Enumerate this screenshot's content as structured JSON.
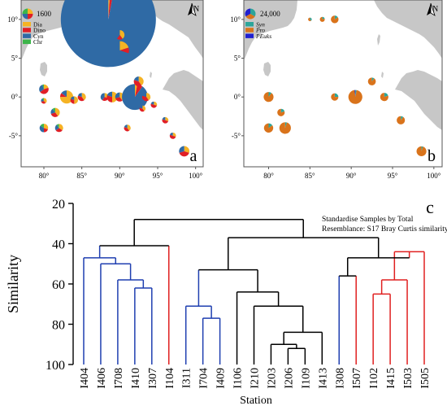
{
  "figure": {
    "colors": {
      "sea": "#ffffff",
      "land": "#c7c7c7",
      "frame": "#555555",
      "dia": "#f5b324",
      "dino": "#e01f26",
      "cyn": "#2f6aa5",
      "chr": "#3cb54a",
      "syn": "#2ca59a",
      "pro": "#d9731b",
      "peuks": "#1f1fd0",
      "blue_cluster": "#1f3fb0",
      "red_cluster": "#e02020",
      "black": "#000000"
    }
  },
  "panels": [
    {
      "id": "a",
      "panel_label": "a",
      "north_label": "N",
      "lat_ticks": [
        "10°",
        "5°",
        "0°",
        "-5°"
      ],
      "lon_ticks": [
        "80°",
        "85°",
        "90°",
        "95°",
        "100°"
      ],
      "legend": {
        "scale_value": "1600",
        "entries": [
          {
            "label": "Dia",
            "color": "#f5b324"
          },
          {
            "label": "Dino",
            "color": "#e01f26"
          },
          {
            "label": "Cyn",
            "color": "#2f6aa5"
          },
          {
            "label": "Chr",
            "color": "#3cb54a"
          }
        ]
      }
    },
    {
      "id": "b",
      "panel_label": "b",
      "north_label": "N",
      "lat_ticks": [
        "10°",
        "5°",
        "0°",
        "-5°"
      ],
      "lon_ticks": [
        "80°",
        "85°",
        "90°",
        "95°",
        "100°"
      ],
      "legend": {
        "scale_value": "24,000",
        "entries": [
          {
            "label": "Syn",
            "color": "#2ca59a"
          },
          {
            "label": "Pro",
            "color": "#d9731b"
          },
          {
            "label": "PEuks",
            "color": "#1f1fd0"
          }
        ]
      }
    }
  ],
  "chart_data": [
    {
      "type": "scatter",
      "panel": "a",
      "series_order": [
        "Dia",
        "Dino",
        "Cyn",
        "Chr"
      ],
      "xlim": [
        77,
        101
      ],
      "ylim": [
        -9,
        12.5
      ],
      "stations": [
        {
          "lon": 80,
          "lat": 1,
          "total": 250,
          "parts": [
            0.2,
            0.45,
            0.3,
            0.05
          ]
        },
        {
          "lon": 80,
          "lat": -0.5,
          "total": 90,
          "parts": [
            0.4,
            0.3,
            0.2,
            0.1
          ]
        },
        {
          "lon": 81.5,
          "lat": -2,
          "total": 230,
          "parts": [
            0.4,
            0.3,
            0.2,
            0.1
          ]
        },
        {
          "lon": 80,
          "lat": -4,
          "total": 200,
          "parts": [
            0.3,
            0.2,
            0.35,
            0.15
          ]
        },
        {
          "lon": 82,
          "lat": -4,
          "total": 180,
          "parts": [
            0.35,
            0.3,
            0.25,
            0.1
          ]
        },
        {
          "lon": 83,
          "lat": 0,
          "total": 480,
          "parts": [
            0.75,
            0.1,
            0.15,
            0.0
          ]
        },
        {
          "lon": 84,
          "lat": -0.4,
          "total": 160,
          "parts": [
            0.5,
            0.3,
            0.2,
            0.0
          ]
        },
        {
          "lon": 85,
          "lat": 0,
          "total": 180,
          "parts": [
            0.4,
            0.4,
            0.2,
            0.0
          ]
        },
        {
          "lon": 85,
          "lat": 10,
          "total": 2700,
          "parts": [
            0.05,
            0.15,
            0.8,
            0.0
          ]
        },
        {
          "lon": 88,
          "lat": 0,
          "total": 170,
          "parts": [
            0.3,
            0.3,
            0.4,
            0.0
          ]
        },
        {
          "lon": 89,
          "lat": 0,
          "total": 320,
          "parts": [
            0.5,
            0.3,
            0.2,
            0.0
          ]
        },
        {
          "lon": 88.5,
          "lat": 10,
          "total": 25000,
          "parts": [
            0.01,
            0.02,
            0.97,
            0.0
          ]
        },
        {
          "lon": 90,
          "lat": 8,
          "total": 250,
          "parts": [
            0.4,
            0.2,
            0.4,
            0.0
          ]
        },
        {
          "lon": 90,
          "lat": 6,
          "total": 950,
          "parts": [
            0.2,
            0.1,
            0.7,
            0.0
          ]
        },
        {
          "lon": 90,
          "lat": 0,
          "total": 230,
          "parts": [
            0.4,
            0.3,
            0.3,
            0.0
          ]
        },
        {
          "lon": 92,
          "lat": 0,
          "total": 1850,
          "parts": [
            0.03,
            0.07,
            0.9,
            0.0
          ]
        },
        {
          "lon": 92.5,
          "lat": 2,
          "total": 270,
          "parts": [
            0.4,
            0.4,
            0.2,
            0.0
          ]
        },
        {
          "lon": 93.5,
          "lat": 0,
          "total": 190,
          "parts": [
            0.4,
            0.4,
            0.2,
            0.0
          ]
        },
        {
          "lon": 91,
          "lat": -4,
          "total": 120,
          "parts": [
            0.4,
            0.4,
            0.2,
            0.0
          ]
        },
        {
          "lon": 93,
          "lat": -1.5,
          "total": 100,
          "parts": [
            0.4,
            0.4,
            0.2,
            0.0
          ]
        },
        {
          "lon": 94.5,
          "lat": -1,
          "total": 110,
          "parts": [
            0.3,
            0.5,
            0.2,
            0.0
          ]
        },
        {
          "lon": 96,
          "lat": -3,
          "total": 110,
          "parts": [
            0.3,
            0.5,
            0.2,
            0.0
          ]
        },
        {
          "lon": 97,
          "lat": -5,
          "total": 110,
          "parts": [
            0.3,
            0.5,
            0.2,
            0.0
          ]
        },
        {
          "lon": 98.5,
          "lat": -7,
          "total": 300,
          "parts": [
            0.3,
            0.4,
            0.3,
            0.0
          ]
        }
      ]
    },
    {
      "type": "scatter",
      "panel": "b",
      "series_order": [
        "Syn",
        "Pro",
        "PEuks"
      ],
      "xlim": [
        77,
        101
      ],
      "ylim": [
        -9,
        12.5
      ],
      "stations": [
        {
          "lon": 85,
          "lat": 10,
          "total": 1500,
          "parts": [
            0.4,
            0.6,
            0.0
          ]
        },
        {
          "lon": 86.5,
          "lat": 10,
          "total": 4000,
          "parts": [
            0.2,
            0.8,
            0.0
          ]
        },
        {
          "lon": 88,
          "lat": 10,
          "total": 9500,
          "parts": [
            0.15,
            0.85,
            0.0
          ]
        },
        {
          "lon": 80,
          "lat": 0,
          "total": 16000,
          "parts": [
            0.1,
            0.9,
            0.0
          ]
        },
        {
          "lon": 80,
          "lat": -4,
          "total": 14000,
          "parts": [
            0.15,
            0.85,
            0.0
          ]
        },
        {
          "lon": 82,
          "lat": -4,
          "total": 22000,
          "parts": [
            0.05,
            0.95,
            0.0
          ]
        },
        {
          "lon": 81.5,
          "lat": -2,
          "total": 9000,
          "parts": [
            0.2,
            0.8,
            0.0
          ]
        },
        {
          "lon": 88,
          "lat": 0,
          "total": 9000,
          "parts": [
            0.25,
            0.75,
            0.0
          ]
        },
        {
          "lon": 90.5,
          "lat": 0,
          "total": 32000,
          "parts": [
            0.03,
            0.95,
            0.02
          ]
        },
        {
          "lon": 92.5,
          "lat": 2,
          "total": 10000,
          "parts": [
            0.1,
            0.9,
            0.0
          ]
        },
        {
          "lon": 94,
          "lat": 0,
          "total": 11000,
          "parts": [
            0.2,
            0.8,
            0.0
          ]
        },
        {
          "lon": 96,
          "lat": -3,
          "total": 11000,
          "parts": [
            0.1,
            0.9,
            0.0
          ]
        },
        {
          "lon": 98.5,
          "lat": -7,
          "total": 16000,
          "parts": [
            0.05,
            0.95,
            0.0
          ]
        }
      ]
    },
    {
      "type": "dendrogram",
      "panel": "c",
      "panel_label": "c",
      "ylabel": "Similarity",
      "xlabel": "Station",
      "ylim": [
        100,
        20
      ],
      "yticks": [
        20,
        40,
        60,
        80,
        100
      ],
      "annotation": [
        "Standardise Samples by Total",
        "Resemblance: S17 Bray Curtis similarity"
      ],
      "leaves": [
        "I404",
        "I406",
        "I708",
        "I410",
        "I307",
        "I104",
        "I311",
        "I704",
        "I409",
        "I106",
        "I210",
        "I203",
        "I206",
        "I109",
        "I413",
        "I308",
        "I507",
        "I102",
        "I415",
        "I503",
        "I505"
      ],
      "merges": [
        {
          "id": "n1",
          "left": "I410",
          "right": "I307",
          "sim": 62,
          "color": "blue"
        },
        {
          "id": "n2",
          "left": "I708",
          "right": "n1",
          "sim": 58,
          "color": "blue"
        },
        {
          "id": "n3",
          "left": "I406",
          "right": "n2",
          "sim": 50,
          "color": "blue"
        },
        {
          "id": "n4",
          "left": "I404",
          "right": "n3",
          "sim": 47,
          "color": "blue"
        },
        {
          "id": "n5",
          "left": "n4",
          "right": "I104",
          "sim": 41,
          "color": "mixed"
        },
        {
          "id": "n6",
          "left": "I704",
          "right": "I409",
          "sim": 77,
          "color": "blue"
        },
        {
          "id": "n7",
          "left": "I311",
          "right": "n6",
          "sim": 71,
          "color": "blue"
        },
        {
          "id": "n8",
          "left": "I206",
          "right": "I109",
          "sim": 92,
          "color": "black"
        },
        {
          "id": "n9",
          "left": "I203",
          "right": "n8",
          "sim": 90,
          "color": "black"
        },
        {
          "id": "n10",
          "left": "n9",
          "right": "I413",
          "sim": 84,
          "color": "black"
        },
        {
          "id": "n11",
          "left": "I210",
          "right": "n10",
          "sim": 71,
          "color": "black"
        },
        {
          "id": "n12",
          "left": "I106",
          "right": "n11",
          "sim": 64,
          "color": "black"
        },
        {
          "id": "n13",
          "left": "n7",
          "right": "n12",
          "sim": 53,
          "color": "black"
        },
        {
          "id": "n14",
          "left": "I308",
          "right": "I507",
          "sim": 56,
          "color": "mixed"
        },
        {
          "id": "n15",
          "left": "I102",
          "right": "I415",
          "sim": 65,
          "color": "red"
        },
        {
          "id": "n16",
          "left": "n15",
          "right": "I503",
          "sim": 58,
          "color": "red"
        },
        {
          "id": "n17",
          "left": "n16",
          "right": "I505",
          "sim": 44,
          "color": "red"
        },
        {
          "id": "n18",
          "left": "n14",
          "right": "n17",
          "sim": 47,
          "color": "black"
        },
        {
          "id": "n19",
          "left": "n13",
          "right": "n18",
          "sim": 37,
          "color": "black"
        },
        {
          "id": "n20",
          "left": "n5",
          "right": "n19",
          "sim": 28,
          "color": "black"
        }
      ],
      "leaf_colors": {
        "I404": "blue",
        "I406": "blue",
        "I708": "blue",
        "I410": "blue",
        "I307": "blue",
        "I104": "red",
        "I311": "blue",
        "I704": "blue",
        "I409": "blue",
        "I106": "black",
        "I210": "black",
        "I203": "black",
        "I206": "black",
        "I109": "black",
        "I413": "black",
        "I308": "blue",
        "I507": "red",
        "I102": "red",
        "I415": "red",
        "I503": "red",
        "I505": "red"
      }
    }
  ]
}
